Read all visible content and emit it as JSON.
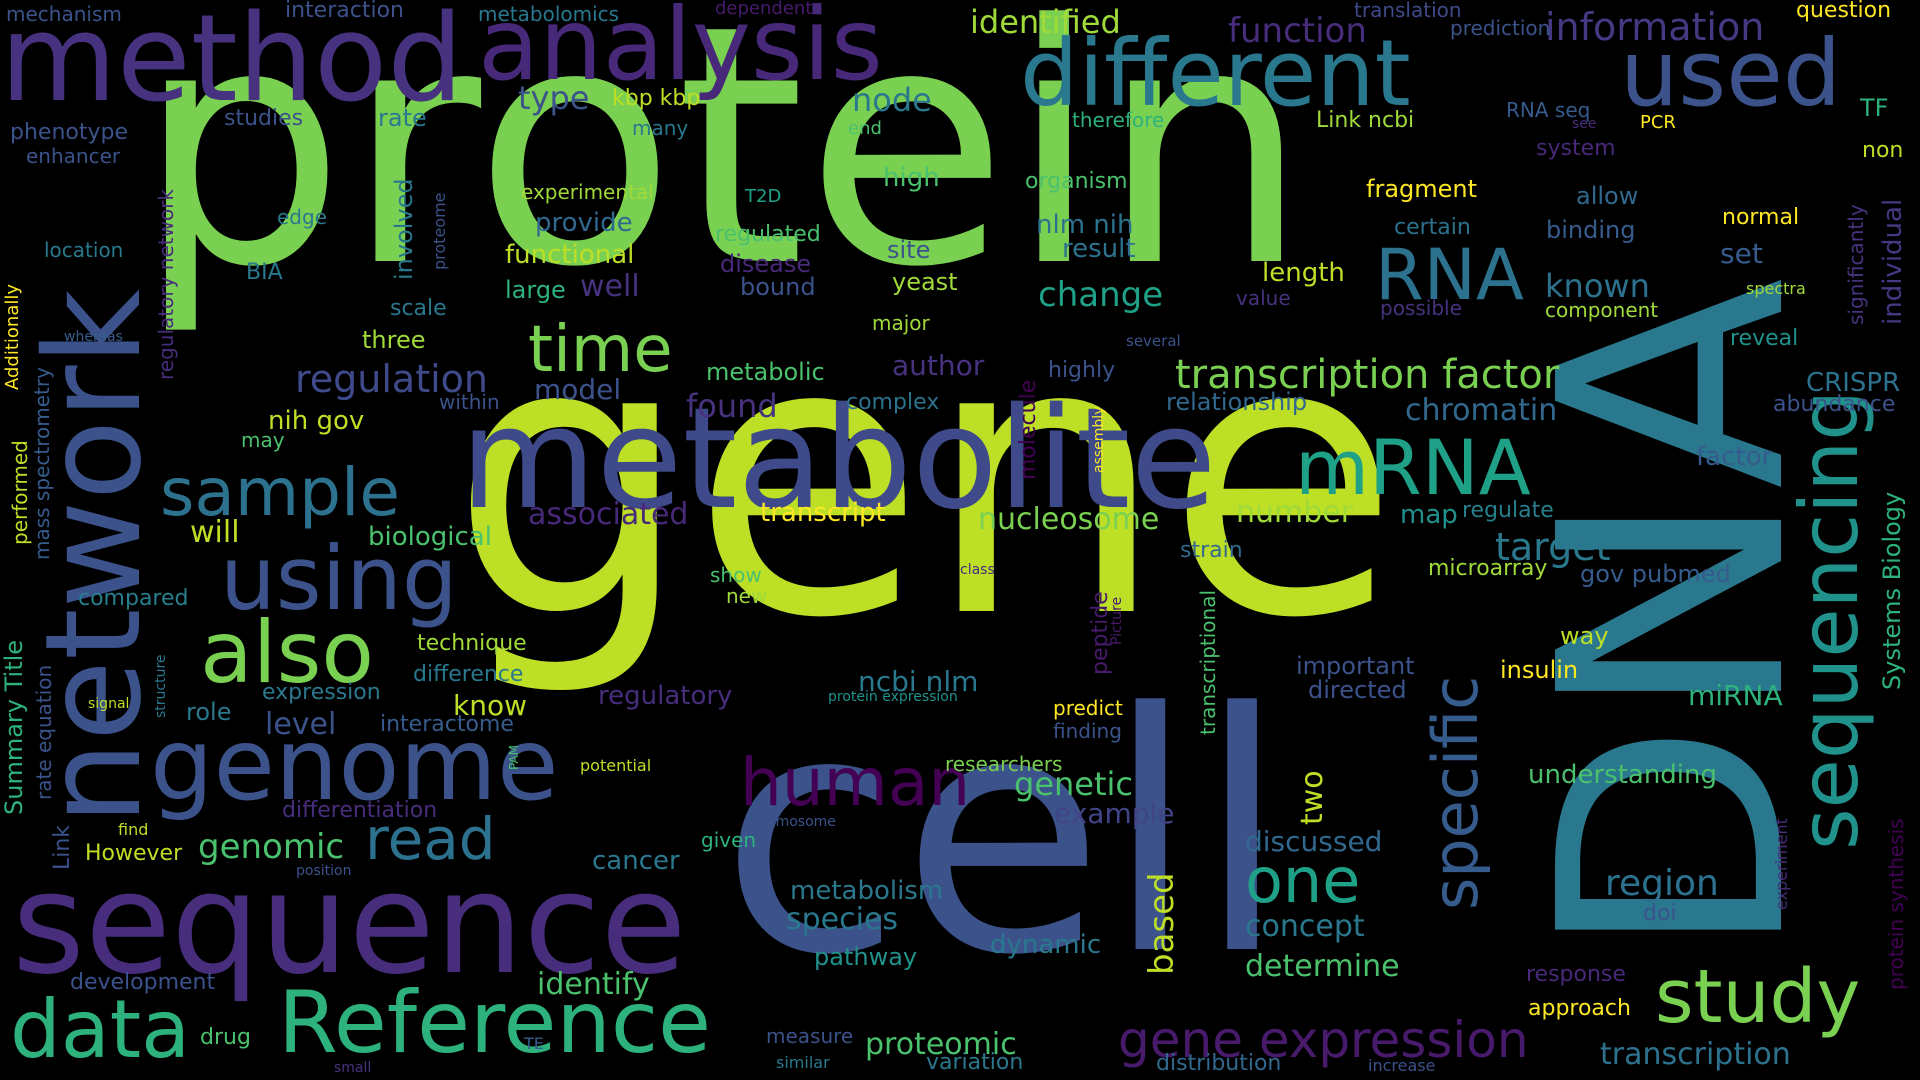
{
  "colors": {
    "background": "#000000",
    "palette": [
      "#7ad151",
      "#bddf26",
      "#2a788e",
      "#3b528b",
      "#440154",
      "#46327e",
      "#365c8d",
      "#277f8e",
      "#1fa187",
      "#4ac16d",
      "#fde725",
      "#481a6c",
      "#21918c",
      "#2db27d",
      "#a0da39"
    ]
  },
  "words": [
    {
      "text": "protein",
      "color": "#7ad151"
    },
    {
      "text": "gene",
      "color": "#bddf26"
    },
    {
      "text": "DNA",
      "color": "#2a788e"
    },
    {
      "text": "cell",
      "color": "#3b528b"
    },
    {
      "text": "network",
      "color": "#3b528b"
    },
    {
      "text": "method",
      "color": "#46327e"
    },
    {
      "text": "analysis",
      "color": "#482878"
    },
    {
      "text": "different",
      "color": "#2a788e"
    },
    {
      "text": "used",
      "color": "#3b528b"
    },
    {
      "text": "metabolite",
      "color": "#3e4a89"
    },
    {
      "text": "sequence",
      "color": "#472d7b"
    },
    {
      "text": "sequencing",
      "color": "#21918c"
    },
    {
      "text": "genome",
      "color": "#3b528b"
    },
    {
      "text": "using",
      "color": "#3b528b"
    },
    {
      "text": "also",
      "color": "#7ad151"
    },
    {
      "text": "Reference",
      "color": "#2db27d"
    },
    {
      "text": "data",
      "color": "#2db27d"
    },
    {
      "text": "study",
      "color": "#7ad151"
    },
    {
      "text": "mRNA",
      "color": "#1fa187"
    },
    {
      "text": "RNA",
      "color": "#2c728e"
    },
    {
      "text": "time",
      "color": "#7ad151"
    },
    {
      "text": "sample",
      "color": "#2c728e"
    },
    {
      "text": "human",
      "color": "#440154"
    },
    {
      "text": "one",
      "color": "#1fa187"
    },
    {
      "text": "specific",
      "color": "#365c8d"
    },
    {
      "text": "read",
      "color": "#2c728e"
    },
    {
      "text": "gene expression",
      "color": "#481a6c"
    },
    {
      "text": "transcription factor",
      "color": "#7ad151"
    },
    {
      "text": "regulation",
      "color": "#3e4a89"
    },
    {
      "text": "identified",
      "color": "#a0da39"
    },
    {
      "text": "function",
      "color": "#472d7b"
    },
    {
      "text": "information",
      "color": "#443983"
    },
    {
      "text": "target",
      "color": "#2a788e"
    },
    {
      "text": "chromatin",
      "color": "#31688e"
    },
    {
      "text": "change",
      "color": "#1fa187"
    },
    {
      "text": "known",
      "color": "#2c728e"
    },
    {
      "text": "region",
      "color": "#2c728e"
    },
    {
      "text": "genomic",
      "color": "#4ac16d"
    },
    {
      "text": "genetic",
      "color": "#4ac16d"
    },
    {
      "text": "human2",
      "color": "#440154"
    },
    {
      "text": "node",
      "color": "#2a788e"
    },
    {
      "text": "type",
      "color": "#3b528b"
    },
    {
      "text": "kbp kbp",
      "color": "#bddf26"
    },
    {
      "text": "identify",
      "color": "#4ac16d"
    },
    {
      "text": "species",
      "color": "#2a788e"
    },
    {
      "text": "concept",
      "color": "#2a788e"
    },
    {
      "text": "determine",
      "color": "#4ac16d"
    },
    {
      "text": "discussed",
      "color": "#31688e"
    },
    {
      "text": "proteomic",
      "color": "#4ac16d"
    },
    {
      "text": "transcription",
      "color": "#2c728e"
    },
    {
      "text": "based",
      "color": "#bddf26"
    },
    {
      "text": "two",
      "color": "#bddf26"
    },
    {
      "text": "nucleosome",
      "color": "#7ad151"
    },
    {
      "text": "number",
      "color": "#a0da39"
    },
    {
      "text": "transcript",
      "color": "#fde725"
    },
    {
      "text": "associated",
      "color": "#482878"
    },
    {
      "text": "found",
      "color": "#46327e"
    },
    {
      "text": "model",
      "color": "#3b528b"
    },
    {
      "text": "author",
      "color": "#46327e"
    },
    {
      "text": "will",
      "color": "#bddf26"
    },
    {
      "text": "level",
      "color": "#3b528b"
    },
    {
      "text": "biological",
      "color": "#4ac16d"
    },
    {
      "text": "ncbi nlm",
      "color": "#2a788e"
    },
    {
      "text": "example",
      "color": "#414487"
    },
    {
      "text": "regulatory",
      "color": "#472d7b"
    },
    {
      "text": "know",
      "color": "#bddf26"
    },
    {
      "text": "cancer",
      "color": "#2a788e"
    },
    {
      "text": "metabolism",
      "color": "#2a788e"
    },
    {
      "text": "dynamic",
      "color": "#2a788e"
    },
    {
      "text": "pathway",
      "color": "#21918c"
    },
    {
      "text": "miRNA",
      "color": "#2db27d"
    },
    {
      "text": "understanding",
      "color": "#4ac16d"
    },
    {
      "text": "important",
      "color": "#3b528b"
    },
    {
      "text": "directed",
      "color": "#3b528b"
    },
    {
      "text": "insulin",
      "color": "#fde725"
    },
    {
      "text": "way",
      "color": "#bddf26"
    },
    {
      "text": "microarray",
      "color": "#a0da39"
    },
    {
      "text": "gov pubmed",
      "color": "#365c8d"
    },
    {
      "text": "map",
      "color": "#21918c"
    },
    {
      "text": "regulate",
      "color": "#277f8e"
    },
    {
      "text": "factor",
      "color": "#365c8d"
    },
    {
      "text": "CRISPR",
      "color": "#2c728e"
    },
    {
      "text": "abundance",
      "color": "#3b528b"
    },
    {
      "text": "relationship",
      "color": "#31688e"
    },
    {
      "text": "Systems Biology",
      "color": "#2db27d"
    },
    {
      "text": "individual",
      "color": "#443983"
    },
    {
      "text": "significantly",
      "color": "#46327e"
    },
    {
      "text": "reveal",
      "color": "#21918c"
    },
    {
      "text": "normal",
      "color": "#fde725"
    },
    {
      "text": "set",
      "color": "#365c8d"
    },
    {
      "text": "component",
      "color": "#a0da39"
    },
    {
      "text": "spectra",
      "color": "#a0da39"
    },
    {
      "text": "binding",
      "color": "#365c8d"
    },
    {
      "text": "allow",
      "color": "#31688e"
    },
    {
      "text": "certain",
      "color": "#2c728e"
    },
    {
      "text": "fragment",
      "color": "#fde725"
    },
    {
      "text": "length",
      "color": "#bddf26"
    },
    {
      "text": "value",
      "color": "#46327e"
    },
    {
      "text": "possible",
      "color": "#46327e"
    },
    {
      "text": "system",
      "color": "#482878"
    },
    {
      "text": "non",
      "color": "#bddf26"
    },
    {
      "text": "TF",
      "color": "#2db27d"
    },
    {
      "text": "PCR",
      "color": "#fde725"
    },
    {
      "text": "see",
      "color": "#472d7b"
    },
    {
      "text": "RNA seq",
      "color": "#365c8d"
    },
    {
      "text": "prediction",
      "color": "#3b528b"
    },
    {
      "text": "translation",
      "color": "#3e4a89"
    },
    {
      "text": "question",
      "color": "#fde725"
    },
    {
      "text": "Link ncbi",
      "color": "#a0da39"
    },
    {
      "text": "therefore",
      "color": "#2db27d"
    },
    {
      "text": "organism",
      "color": "#4ac16d"
    },
    {
      "text": "high",
      "color": "#4ac16d"
    },
    {
      "text": "end",
      "color": "#4ac16d"
    },
    {
      "text": "many",
      "color": "#2a788e"
    },
    {
      "text": "nlm nih",
      "color": "#2c728e"
    },
    {
      "text": "result",
      "color": "#2c728e"
    },
    {
      "text": "site",
      "color": "#3b528b"
    },
    {
      "text": "yeast",
      "color": "#a0da39"
    },
    {
      "text": "major",
      "color": "#a0da39"
    },
    {
      "text": "several",
      "color": "#3b528b"
    },
    {
      "text": "highly",
      "color": "#3b528b"
    },
    {
      "text": "complex",
      "color": "#2c728e"
    },
    {
      "text": "experimental",
      "color": "#a0da39"
    },
    {
      "text": "T2D",
      "color": "#1fa187"
    },
    {
      "text": "regulated",
      "color": "#4ac16d"
    },
    {
      "text": "disease",
      "color": "#482878"
    },
    {
      "text": "bound",
      "color": "#3b528b"
    },
    {
      "text": "provide",
      "color": "#31688e"
    },
    {
      "text": "functional",
      "color": "#bddf26"
    },
    {
      "text": "large",
      "color": "#2db27d"
    },
    {
      "text": "well",
      "color": "#46327e"
    },
    {
      "text": "metabolic",
      "color": "#4ac16d"
    },
    {
      "text": "molecule",
      "color": "#440154"
    },
    {
      "text": "assembly",
      "color": "#fde725"
    },
    {
      "text": "strain",
      "color": "#31688e"
    },
    {
      "text": "class",
      "color": "#472d7b"
    },
    {
      "text": "show",
      "color": "#4ac16d"
    },
    {
      "text": "new",
      "color": "#a0da39"
    },
    {
      "text": "transcriptional",
      "color": "#4ac16d"
    },
    {
      "text": "peptide",
      "color": "#481a6c"
    },
    {
      "text": "Picture",
      "color": "#481a6c"
    },
    {
      "text": "predict",
      "color": "#fde725"
    },
    {
      "text": "finding",
      "color": "#3b528b"
    },
    {
      "text": "researchers",
      "color": "#7ad151"
    },
    {
      "text": "protein expression",
      "color": "#21918c"
    },
    {
      "text": "chromosome",
      "color": "#3b528b"
    },
    {
      "text": "potential",
      "color": "#bddf26"
    },
    {
      "text": "given",
      "color": "#2db27d"
    },
    {
      "text": "measure",
      "color": "#3b528b"
    },
    {
      "text": "similar",
      "color": "#2a788e"
    },
    {
      "text": "variation",
      "color": "#2a788e"
    },
    {
      "text": "distribution",
      "color": "#31688e"
    },
    {
      "text": "increase",
      "color": "#3b528b"
    },
    {
      "text": "approach",
      "color": "#fde725"
    },
    {
      "text": "response",
      "color": "#482878"
    },
    {
      "text": "doi",
      "color": "#3b528b"
    },
    {
      "text": "experiment",
      "color": "#472d7b"
    },
    {
      "text": "protein synthesis",
      "color": "#440154"
    },
    {
      "text": "PAM",
      "color": "#4ac16d"
    },
    {
      "text": "technique",
      "color": "#a0da39"
    },
    {
      "text": "difference",
      "color": "#2a788e"
    },
    {
      "text": "expression",
      "color": "#2a788e"
    },
    {
      "text": "interactome",
      "color": "#365c8d"
    },
    {
      "text": "role",
      "color": "#2a788e"
    },
    {
      "text": "differentiation",
      "color": "#472d7b"
    },
    {
      "text": "However",
      "color": "#bddf26"
    },
    {
      "text": "position",
      "color": "#3b528b"
    },
    {
      "text": "find",
      "color": "#bddf26"
    },
    {
      "text": "drug",
      "color": "#4ac16d"
    },
    {
      "text": "TE",
      "color": "#365c8d"
    },
    {
      "text": "small",
      "color": "#46327e"
    },
    {
      "text": "development",
      "color": "#3b528b"
    },
    {
      "text": "signal",
      "color": "#bddf26"
    },
    {
      "text": "structure",
      "color": "#2a788e"
    },
    {
      "text": "rate equation",
      "color": "#3b528b"
    },
    {
      "text": "Link",
      "color": "#3b528b"
    },
    {
      "text": "Summary Title",
      "color": "#2db27d"
    },
    {
      "text": "compared",
      "color": "#277f8e"
    },
    {
      "text": "performed",
      "color": "#bddf26"
    },
    {
      "text": "mass spectrometry",
      "color": "#365c8d"
    },
    {
      "text": "Additionally",
      "color": "#fde725"
    },
    {
      "text": "whereas",
      "color": "#365c8d"
    },
    {
      "text": "within",
      "color": "#3b528b"
    },
    {
      "text": "may",
      "color": "#4ac16d"
    },
    {
      "text": "nih gov",
      "color": "#bddf26"
    },
    {
      "text": "three",
      "color": "#a0da39"
    },
    {
      "text": "scale",
      "color": "#2a788e"
    },
    {
      "text": "involved",
      "color": "#2a788e"
    },
    {
      "text": "proteome",
      "color": "#3b528b"
    },
    {
      "text": "BIA",
      "color": "#2a788e"
    },
    {
      "text": "edge",
      "color": "#2a788e"
    },
    {
      "text": "location",
      "color": "#2a788e"
    },
    {
      "text": "enhancer",
      "color": "#3b528b"
    },
    {
      "text": "phenotype",
      "color": "#3b528b"
    },
    {
      "text": "mechanism",
      "color": "#3b528b"
    },
    {
      "text": "interaction",
      "color": "#3b528b"
    },
    {
      "text": "metabolomics",
      "color": "#2a788e"
    },
    {
      "text": "dependent",
      "color": "#481a6c"
    },
    {
      "text": "studies",
      "color": "#3b528b"
    },
    {
      "text": "rate",
      "color": "#2a788e"
    },
    {
      "text": "regulatory network",
      "color": "#472d7b"
    }
  ]
}
